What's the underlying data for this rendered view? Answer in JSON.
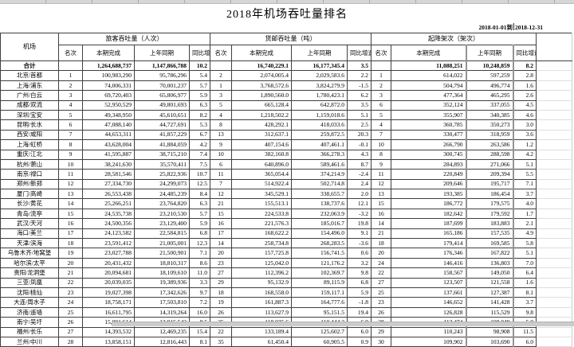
{
  "title": "2018年机场吞吐量排名",
  "date_range": {
    "start": "2018-01-01",
    "separator": "到",
    "end": "2018-12-31"
  },
  "table": {
    "airport_header": "机场",
    "groups": [
      {
        "label": "旅客吞吐量（人次）"
      },
      {
        "label": "货邮吞吐量（吨）"
      },
      {
        "label": "起降架次（架次）"
      }
    ],
    "sub_headers": [
      "名次",
      "本期完成",
      "上年同期",
      "同比增速%"
    ],
    "total_row": {
      "name": "合计",
      "pax": [
        "",
        "1,264,688,737",
        "1,147,866,788",
        "10.2"
      ],
      "cargo": [
        "",
        "16,740,229.1",
        "16,177,345.4",
        "3.5"
      ],
      "movements": [
        "",
        "11,088,251",
        "10,248,859",
        "8.2"
      ]
    },
    "rows": [
      {
        "name": "北京/首都",
        "pax": [
          "1",
          "100,983,290",
          "95,786,296",
          "5.4"
        ],
        "cargo": [
          "2",
          "2,074,005.4",
          "2,029,583.6",
          "2.2"
        ],
        "movements": [
          "1",
          "614,022",
          "597,259",
          "2.8"
        ]
      },
      {
        "name": "上海/浦东",
        "pax": [
          "2",
          "74,006,331",
          "70,001,237",
          "5.7"
        ],
        "cargo": [
          "1",
          "3,768,572.6",
          "3,824,279.9",
          "-1.5"
        ],
        "movements": [
          "2",
          "504,794",
          "496,774",
          "1.6"
        ]
      },
      {
        "name": "广州/白云",
        "pax": [
          "3",
          "69,720,403",
          "65,806,977",
          "5.9"
        ],
        "cargo": [
          "3",
          "1,890,560.0",
          "1,780,423.1",
          "6.2"
        ],
        "movements": [
          "3",
          "477,364",
          "465,295",
          "2.6"
        ]
      },
      {
        "name": "成都/双流",
        "pax": [
          "4",
          "52,950,529",
          "49,801,693",
          "6.3"
        ],
        "cargo": [
          "5",
          "665,128.4",
          "642,872.0",
          "3.5"
        ],
        "movements": [
          "6",
          "352,124",
          "337,055",
          "4.5"
        ]
      },
      {
        "name": "深圳/宝安",
        "pax": [
          "5",
          "49,348,950",
          "45,610,651",
          "8.2"
        ],
        "cargo": [
          "4",
          "1,218,502.2",
          "1,159,018.6",
          "5.1"
        ],
        "movements": [
          "5",
          "355,907",
          "340,385",
          "4.6"
        ]
      },
      {
        "name": "昆明/长水",
        "pax": [
          "6",
          "47,088,140",
          "44,727,691",
          "5.3"
        ],
        "cargo": [
          "8",
          "428,292.1",
          "418,033.6",
          "2.5"
        ],
        "movements": [
          "4",
          "360,785",
          "350,273",
          "3.0"
        ]
      },
      {
        "name": "西安/咸阳",
        "pax": [
          "7",
          "44,653,311",
          "41,857,229",
          "6.7"
        ],
        "cargo": [
          "13",
          "312,637.1",
          "259,872.5",
          "20.3"
        ],
        "movements": [
          "7",
          "330,477",
          "318,959",
          "3.6"
        ]
      },
      {
        "name": "上海/虹桥",
        "pax": [
          "8",
          "43,628,004",
          "41,884,059",
          "4.2"
        ],
        "cargo": [
          "9",
          "407,154.6",
          "407,461.1",
          "-0.1"
        ],
        "movements": [
          "10",
          "266,790",
          "263,586",
          "1.2"
        ]
      },
      {
        "name": "重庆/江北",
        "pax": [
          "9",
          "41,595,887",
          "38,715,210",
          "7.4"
        ],
        "cargo": [
          "10",
          "382,160.8",
          "366,278.3",
          "4.3"
        ],
        "movements": [
          "8",
          "300,745",
          "288,598",
          "4.2"
        ]
      },
      {
        "name": "杭州/萧山",
        "pax": [
          "10",
          "38,241,630",
          "35,570,411",
          "7.5"
        ],
        "cargo": [
          "6",
          "640,896.0",
          "589,461.6",
          "8.7"
        ],
        "movements": [
          "9",
          "284,893",
          "271,066",
          "5.1"
        ]
      },
      {
        "name": "南京/禄口",
        "pax": [
          "11",
          "28,581,546",
          "25,822,936",
          "10.7"
        ],
        "cargo": [
          "11",
          "365,054.4",
          "374,214.9",
          "-2.4"
        ],
        "movements": [
          "11",
          "220,849",
          "209,394",
          "5.5"
        ]
      },
      {
        "name": "郑州/新郑",
        "pax": [
          "12",
          "27,334,730",
          "24,299,073",
          "12.5"
        ],
        "cargo": [
          "7",
          "514,922.4",
          "502,714.8",
          "2.4"
        ],
        "movements": [
          "12",
          "209,646",
          "195,717",
          "7.1"
        ]
      },
      {
        "name": "厦门/高崎",
        "pax": [
          "13",
          "26,553,438",
          "24,485,239",
          "8.4"
        ],
        "cargo": [
          "12",
          "345,529.1",
          "338,655.7",
          "2.0"
        ],
        "movements": [
          "13",
          "193,385",
          "186,454",
          "3.7"
        ]
      },
      {
        "name": "长沙/黄花",
        "pax": [
          "14",
          "25,266,251",
          "23,764,820",
          "6.3"
        ],
        "cargo": [
          "21",
          "155,513.1",
          "138,737.6",
          "12.1"
        ],
        "movements": [
          "15",
          "186,772",
          "179,575",
          "4.0"
        ]
      },
      {
        "name": "青岛/流亭",
        "pax": [
          "15",
          "24,535,738",
          "23,210,530",
          "5.7"
        ],
        "cargo": [
          "15",
          "224,533.8",
          "232,063.9",
          "-3.2"
        ],
        "movements": [
          "16",
          "182,642",
          "179,592",
          "1.7"
        ]
      },
      {
        "name": "武汉/天河",
        "pax": [
          "16",
          "24,500,356",
          "23,129,400",
          "5.9"
        ],
        "cargo": [
          "16",
          "221,576.3",
          "185,016.7",
          "19.8"
        ],
        "movements": [
          "14",
          "187,699",
          "183,883",
          "2.1"
        ]
      },
      {
        "name": "海口/美兰",
        "pax": [
          "17",
          "24,123,582",
          "22,584,815",
          "6.8"
        ],
        "cargo": [
          "17",
          "168,622.2",
          "154,496.0",
          "9.1"
        ],
        "movements": [
          "21",
          "165,186",
          "157,535",
          "4.9"
        ]
      },
      {
        "name": "天津/滨海",
        "pax": [
          "18",
          "23,591,412",
          "21,005,001",
          "12.3"
        ],
        "cargo": [
          "14",
          "258,734.8",
          "268,283.5",
          "-3.6"
        ],
        "movements": [
          "18",
          "179,414",
          "169,585",
          "5.8"
        ]
      },
      {
        "name": "乌鲁木齐/地窝堡",
        "pax": [
          "19",
          "23,027,788",
          "21,500,901",
          "7.1"
        ],
        "cargo": [
          "20",
          "157,725.8",
          "156,741.5",
          "0.6"
        ],
        "movements": [
          "20",
          "176,346",
          "167,822",
          "5.1"
        ]
      },
      {
        "name": "哈尔滨/太平",
        "pax": [
          "20",
          "20,431,432",
          "18,810,317",
          "8.6"
        ],
        "cargo": [
          "23",
          "125,042.0",
          "121,176.2",
          "3.2"
        ],
        "movements": [
          "24",
          "146,416",
          "136,803",
          "7.0"
        ]
      },
      {
        "name": "贵阳/龙洞堡",
        "pax": [
          "21",
          "20,094,681",
          "18,109,610",
          "11.0"
        ],
        "cargo": [
          "27",
          "112,396.2",
          "102,369.7",
          "9.8"
        ],
        "movements": [
          "22",
          "158,567",
          "149,050",
          "6.4"
        ]
      },
      {
        "name": "三亚/凤凰",
        "pax": [
          "22",
          "20,039,035",
          "19,389,936",
          "3.3"
        ],
        "cargo": [
          "29",
          "95,132.9",
          "89,115.9",
          "6.8"
        ],
        "movements": [
          "27",
          "123,507",
          "121,558",
          "1.6"
        ]
      },
      {
        "name": "沈阳/桃仙",
        "pax": [
          "23",
          "19,027,398",
          "17,342,626",
          "9.7"
        ],
        "cargo": [
          "18",
          "168,558.0",
          "159,117.1",
          "5.9"
        ],
        "movements": [
          "25",
          "137,661",
          "127,387",
          "8.1"
        ]
      },
      {
        "name": "大连/周水子",
        "pax": [
          "24",
          "18,758,171",
          "17,503,810",
          "7.2"
        ],
        "cargo": [
          "19",
          "161,887.3",
          "164,777.6",
          "-1.8"
        ],
        "movements": [
          "23",
          "146,652",
          "141,428",
          "3.7"
        ]
      },
      {
        "name": "济南/遥墙",
        "pax": [
          "25",
          "16,611,795",
          "14,319,264",
          "16.0"
        ],
        "cargo": [
          "26",
          "113,627.9",
          "95,151.5",
          "19.4"
        ],
        "movements": [
          "26",
          "126,828",
          "115,529",
          "9.8"
        ]
      },
      {
        "name": "南宁/吴圩",
        "pax": [
          "26",
          "15,091,614",
          "13,915,542",
          "8.5"
        ],
        "cargo": [
          "25",
          "118,035.6",
          "110,444.2",
          "6.9"
        ],
        "movements": [
          "28",
          "113,474",
          "108,049",
          "5.0"
        ]
      },
      {
        "name": "福州/长乐",
        "pax": [
          "27",
          "14,393,532",
          "12,469,235",
          "15.4"
        ],
        "cargo": [
          "22",
          "133,189.4",
          "125,602.7",
          "6.0"
        ],
        "movements": [
          "29",
          "110,243",
          "98,908",
          "11.5"
        ]
      },
      {
        "name": "兰州/中川",
        "pax": [
          "28",
          "13,858,151",
          "12,816,443",
          "8.1"
        ],
        "cargo": [
          "35",
          "61,450.4",
          "60,905.5",
          "0.9"
        ],
        "movements": [
          "30",
          "109,902",
          "103,690",
          "6.0"
        ]
      }
    ]
  }
}
